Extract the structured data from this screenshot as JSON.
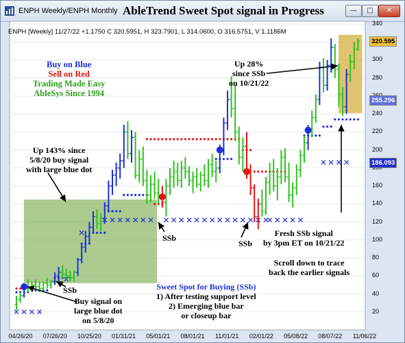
{
  "window": {
    "tab_text": "ENPH Weekly/ENPH Monthly",
    "title": "AbleTrend Sweet Spot signal in Progress",
    "minimize_label": "—",
    "maximize_label": "□",
    "close_label": "✕"
  },
  "info_line": "ENPH [Weekly] 11/27/22 +1.1750 C 320.5951, H 323.7901, L 314.0600, O 316.5751, V 1.1186M",
  "price_boxes": [
    {
      "value": "320.595",
      "bg": "#f0c040",
      "fg": "#000000"
    },
    {
      "value": "255.296",
      "bg": "#6070d8",
      "fg": "#ffffff"
    },
    {
      "value": "186.093",
      "bg": "#2030c8",
      "fg": "#ffffff"
    }
  ],
  "annotations": {
    "slogan": [
      "Buy on Blue",
      "Sell on Red",
      "Trading Made Easy",
      "AbleSys Since 1994"
    ],
    "up143": [
      "Up 143% since",
      "5/8/20 buy signal",
      "with large blue dot"
    ],
    "up28": [
      "Up 28%",
      "since SSb",
      "on 10/21/22"
    ],
    "ssb_a": "SSb",
    "ssb_b": "SSb",
    "ssb_c": "SSb",
    "buy_signal": [
      "Buy signal on",
      "large blue dot",
      "on 5/8/20"
    ],
    "sweet_title": "Sweet Spot for Buying (SSb)",
    "sweet_lines": [
      "1) After testing support level",
      "2) Emerging blue bar",
      "or closeup bar"
    ],
    "fresh": [
      "Fresh SSb signal",
      "by 3pm ET on 10/21/22"
    ],
    "scroll": [
      "Scroll down to trace",
      "back the earlier signals"
    ]
  },
  "colors": {
    "up_bar": "#1d2fd6",
    "neutral_bar": "#2fc21f",
    "down_bar": "#e01414",
    "support_dot": "#1d2fd6",
    "resist_dot": "#e01414",
    "x_marker": "#1d2fd6",
    "green_box": "#8fb96a",
    "gold_box": "#d8b44a"
  },
  "chart_data": {
    "type": "ohlc",
    "ylim": [
      0,
      340
    ],
    "y_ticks": [
      20,
      40,
      60,
      80,
      100,
      120,
      140,
      160,
      180,
      200,
      220,
      240,
      260,
      280,
      300,
      320,
      340
    ],
    "x_ticks": [
      "04/26/20",
      "07/26/20",
      "10/25/20",
      "01/31/21",
      "05/01/21",
      "08/01/21",
      "11/01/21",
      "02/01/22",
      "05/08/22",
      "08/07/22",
      "11/06/22"
    ],
    "bars": [
      {
        "i": 0,
        "o": 28,
        "h": 38,
        "l": 22,
        "c": 34,
        "color": "neutral"
      },
      {
        "i": 1,
        "o": 34,
        "h": 42,
        "l": 30,
        "c": 38,
        "color": "neutral"
      },
      {
        "i": 2,
        "o": 38,
        "h": 52,
        "l": 36,
        "c": 48,
        "color": "up"
      },
      {
        "i": 3,
        "o": 48,
        "h": 56,
        "l": 42,
        "c": 46,
        "color": "neutral"
      },
      {
        "i": 4,
        "o": 46,
        "h": 54,
        "l": 42,
        "c": 50,
        "color": "neutral"
      },
      {
        "i": 5,
        "o": 50,
        "h": 56,
        "l": 44,
        "c": 48,
        "color": "neutral"
      },
      {
        "i": 6,
        "o": 48,
        "h": 54,
        "l": 42,
        "c": 46,
        "color": "neutral"
      },
      {
        "i": 7,
        "o": 46,
        "h": 54,
        "l": 42,
        "c": 52,
        "color": "neutral"
      },
      {
        "i": 8,
        "o": 52,
        "h": 58,
        "l": 46,
        "c": 50,
        "color": "neutral"
      },
      {
        "i": 9,
        "o": 50,
        "h": 56,
        "l": 46,
        "c": 54,
        "color": "neutral"
      },
      {
        "i": 10,
        "o": 54,
        "h": 64,
        "l": 50,
        "c": 60,
        "color": "up"
      },
      {
        "i": 11,
        "o": 60,
        "h": 70,
        "l": 54,
        "c": 64,
        "color": "up"
      },
      {
        "i": 12,
        "o": 64,
        "h": 72,
        "l": 58,
        "c": 62,
        "color": "neutral"
      },
      {
        "i": 13,
        "o": 62,
        "h": 68,
        "l": 56,
        "c": 60,
        "color": "neutral"
      },
      {
        "i": 14,
        "o": 60,
        "h": 66,
        "l": 54,
        "c": 58,
        "color": "neutral"
      },
      {
        "i": 15,
        "o": 58,
        "h": 66,
        "l": 54,
        "c": 64,
        "color": "neutral"
      },
      {
        "i": 16,
        "o": 64,
        "h": 80,
        "l": 60,
        "c": 78,
        "color": "up"
      },
      {
        "i": 17,
        "o": 78,
        "h": 96,
        "l": 74,
        "c": 92,
        "color": "up"
      },
      {
        "i": 18,
        "o": 92,
        "h": 110,
        "l": 86,
        "c": 104,
        "color": "up"
      },
      {
        "i": 19,
        "o": 104,
        "h": 120,
        "l": 96,
        "c": 114,
        "color": "up"
      },
      {
        "i": 20,
        "o": 114,
        "h": 132,
        "l": 108,
        "c": 126,
        "color": "up"
      },
      {
        "i": 21,
        "o": 126,
        "h": 134,
        "l": 112,
        "c": 118,
        "color": "neutral"
      },
      {
        "i": 22,
        "o": 118,
        "h": 130,
        "l": 110,
        "c": 124,
        "color": "neutral"
      },
      {
        "i": 23,
        "o": 124,
        "h": 142,
        "l": 118,
        "c": 138,
        "color": "up"
      },
      {
        "i": 24,
        "o": 138,
        "h": 166,
        "l": 132,
        "c": 160,
        "color": "up"
      },
      {
        "i": 25,
        "o": 160,
        "h": 178,
        "l": 150,
        "c": 172,
        "color": "up"
      },
      {
        "i": 26,
        "o": 172,
        "h": 186,
        "l": 160,
        "c": 180,
        "color": "up"
      },
      {
        "i": 27,
        "o": 180,
        "h": 196,
        "l": 168,
        "c": 188,
        "color": "up"
      },
      {
        "i": 28,
        "o": 188,
        "h": 228,
        "l": 180,
        "c": 220,
        "color": "up"
      },
      {
        "i": 29,
        "o": 220,
        "h": 232,
        "l": 190,
        "c": 196,
        "color": "neutral"
      },
      {
        "i": 30,
        "o": 196,
        "h": 222,
        "l": 186,
        "c": 214,
        "color": "up"
      },
      {
        "i": 31,
        "o": 214,
        "h": 220,
        "l": 168,
        "c": 172,
        "color": "neutral"
      },
      {
        "i": 32,
        "o": 172,
        "h": 200,
        "l": 164,
        "c": 190,
        "color": "neutral"
      },
      {
        "i": 33,
        "o": 190,
        "h": 204,
        "l": 160,
        "c": 166,
        "color": "neutral"
      },
      {
        "i": 34,
        "o": 166,
        "h": 178,
        "l": 140,
        "c": 150,
        "color": "neutral"
      },
      {
        "i": 35,
        "o": 150,
        "h": 172,
        "l": 142,
        "c": 162,
        "color": "neutral"
      },
      {
        "i": 36,
        "o": 162,
        "h": 176,
        "l": 146,
        "c": 152,
        "color": "neutral"
      },
      {
        "i": 37,
        "o": 152,
        "h": 168,
        "l": 140,
        "c": 148,
        "color": "neutral"
      },
      {
        "i": 38,
        "o": 148,
        "h": 160,
        "l": 136,
        "c": 142,
        "color": "down"
      },
      {
        "i": 39,
        "o": 142,
        "h": 168,
        "l": 126,
        "c": 160,
        "color": "neutral"
      },
      {
        "i": 40,
        "o": 160,
        "h": 180,
        "l": 150,
        "c": 170,
        "color": "neutral"
      },
      {
        "i": 41,
        "o": 170,
        "h": 188,
        "l": 158,
        "c": 176,
        "color": "neutral"
      },
      {
        "i": 42,
        "o": 176,
        "h": 186,
        "l": 160,
        "c": 166,
        "color": "neutral"
      },
      {
        "i": 43,
        "o": 166,
        "h": 188,
        "l": 158,
        "c": 180,
        "color": "neutral"
      },
      {
        "i": 44,
        "o": 180,
        "h": 192,
        "l": 168,
        "c": 176,
        "color": "neutral"
      },
      {
        "i": 45,
        "o": 176,
        "h": 182,
        "l": 160,
        "c": 166,
        "color": "neutral"
      },
      {
        "i": 46,
        "o": 166,
        "h": 176,
        "l": 152,
        "c": 170,
        "color": "neutral"
      },
      {
        "i": 47,
        "o": 170,
        "h": 180,
        "l": 158,
        "c": 162,
        "color": "neutral"
      },
      {
        "i": 48,
        "o": 162,
        "h": 176,
        "l": 154,
        "c": 172,
        "color": "neutral"
      },
      {
        "i": 49,
        "o": 172,
        "h": 184,
        "l": 160,
        "c": 166,
        "color": "neutral"
      },
      {
        "i": 50,
        "o": 166,
        "h": 190,
        "l": 158,
        "c": 184,
        "color": "neutral"
      },
      {
        "i": 51,
        "o": 184,
        "h": 196,
        "l": 170,
        "c": 176,
        "color": "neutral"
      },
      {
        "i": 52,
        "o": 176,
        "h": 188,
        "l": 164,
        "c": 180,
        "color": "neutral"
      },
      {
        "i": 53,
        "o": 180,
        "h": 206,
        "l": 174,
        "c": 200,
        "color": "up"
      },
      {
        "i": 54,
        "o": 200,
        "h": 236,
        "l": 194,
        "c": 230,
        "color": "up"
      },
      {
        "i": 55,
        "o": 230,
        "h": 266,
        "l": 222,
        "c": 256,
        "color": "up"
      },
      {
        "i": 56,
        "o": 256,
        "h": 282,
        "l": 236,
        "c": 246,
        "color": "neutral"
      },
      {
        "i": 57,
        "o": 246,
        "h": 272,
        "l": 210,
        "c": 220,
        "color": "neutral"
      },
      {
        "i": 58,
        "o": 220,
        "h": 226,
        "l": 184,
        "c": 192,
        "color": "neutral"
      },
      {
        "i": 59,
        "o": 192,
        "h": 214,
        "l": 176,
        "c": 204,
        "color": "neutral"
      },
      {
        "i": 60,
        "o": 204,
        "h": 220,
        "l": 168,
        "c": 176,
        "color": "down"
      },
      {
        "i": 61,
        "o": 176,
        "h": 184,
        "l": 150,
        "c": 158,
        "color": "down"
      },
      {
        "i": 62,
        "o": 158,
        "h": 162,
        "l": 120,
        "c": 126,
        "color": "down"
      },
      {
        "i": 63,
        "o": 126,
        "h": 146,
        "l": 112,
        "c": 140,
        "color": "down"
      },
      {
        "i": 64,
        "o": 140,
        "h": 156,
        "l": 126,
        "c": 132,
        "color": "neutral"
      },
      {
        "i": 65,
        "o": 132,
        "h": 170,
        "l": 128,
        "c": 164,
        "color": "neutral"
      },
      {
        "i": 66,
        "o": 164,
        "h": 186,
        "l": 150,
        "c": 176,
        "color": "neutral"
      },
      {
        "i": 67,
        "o": 176,
        "h": 190,
        "l": 154,
        "c": 160,
        "color": "neutral"
      },
      {
        "i": 68,
        "o": 160,
        "h": 180,
        "l": 144,
        "c": 170,
        "color": "neutral"
      },
      {
        "i": 69,
        "o": 170,
        "h": 200,
        "l": 162,
        "c": 192,
        "color": "neutral"
      },
      {
        "i": 70,
        "o": 192,
        "h": 202,
        "l": 164,
        "c": 170,
        "color": "neutral"
      },
      {
        "i": 71,
        "o": 170,
        "h": 186,
        "l": 142,
        "c": 150,
        "color": "neutral"
      },
      {
        "i": 72,
        "o": 150,
        "h": 164,
        "l": 136,
        "c": 158,
        "color": "neutral"
      },
      {
        "i": 73,
        "o": 158,
        "h": 184,
        "l": 150,
        "c": 178,
        "color": "neutral"
      },
      {
        "i": 74,
        "o": 178,
        "h": 200,
        "l": 170,
        "c": 194,
        "color": "neutral"
      },
      {
        "i": 75,
        "o": 194,
        "h": 216,
        "l": 186,
        "c": 208,
        "color": "neutral"
      },
      {
        "i": 76,
        "o": 208,
        "h": 228,
        "l": 200,
        "c": 222,
        "color": "up"
      },
      {
        "i": 77,
        "o": 222,
        "h": 244,
        "l": 214,
        "c": 236,
        "color": "neutral"
      },
      {
        "i": 78,
        "o": 236,
        "h": 262,
        "l": 230,
        "c": 256,
        "color": "neutral"
      },
      {
        "i": 79,
        "o": 256,
        "h": 298,
        "l": 250,
        "c": 292,
        "color": "up"
      },
      {
        "i": 80,
        "o": 292,
        "h": 302,
        "l": 264,
        "c": 272,
        "color": "neutral"
      },
      {
        "i": 81,
        "o": 272,
        "h": 300,
        "l": 266,
        "c": 294,
        "color": "up"
      },
      {
        "i": 82,
        "o": 294,
        "h": 324,
        "l": 286,
        "c": 314,
        "color": "up"
      },
      {
        "i": 83,
        "o": 314,
        "h": 318,
        "l": 280,
        "c": 290,
        "color": "neutral"
      },
      {
        "i": 84,
        "o": 290,
        "h": 296,
        "l": 248,
        "c": 262,
        "color": "neutral"
      },
      {
        "i": 85,
        "o": 262,
        "h": 270,
        "l": 238,
        "c": 248,
        "color": "neutral"
      },
      {
        "i": 86,
        "o": 248,
        "h": 290,
        "l": 240,
        "c": 284,
        "color": "up"
      },
      {
        "i": 87,
        "o": 284,
        "h": 306,
        "l": 276,
        "c": 298,
        "color": "neutral"
      },
      {
        "i": 88,
        "o": 298,
        "h": 320,
        "l": 290,
        "c": 312,
        "color": "neutral"
      },
      {
        "i": 89,
        "o": 312,
        "h": 324,
        "l": 310,
        "c": 321,
        "color": "neutral"
      }
    ],
    "support_dots": [
      {
        "from": 0,
        "to": 3,
        "y": 42
      },
      {
        "from": 5,
        "to": 8,
        "y": 44
      },
      {
        "from": 10,
        "to": 14,
        "y": 58
      },
      {
        "from": 17,
        "to": 19,
        "y": 96
      },
      {
        "from": 20,
        "to": 23,
        "y": 108
      },
      {
        "from": 24,
        "to": 27,
        "y": 132
      },
      {
        "from": 28,
        "to": 34,
        "y": 150
      },
      {
        "from": 52,
        "to": 56,
        "y": 190
      },
      {
        "from": 75,
        "to": 79,
        "y": 216
      },
      {
        "from": 80,
        "to": 82,
        "y": 226
      },
      {
        "from": 83,
        "to": 89,
        "y": 234
      }
    ],
    "resist_dots": [
      {
        "from": 0,
        "to": 1,
        "y": 46
      },
      {
        "from": 36,
        "to": 38,
        "y": 140
      },
      {
        "from": 34,
        "to": 58,
        "y": 212
      },
      {
        "from": 59,
        "to": 61,
        "y": 200
      },
      {
        "from": 62,
        "to": 70,
        "y": 176
      }
    ],
    "big_dots": [
      {
        "i": 2,
        "y": 48,
        "color": "up"
      },
      {
        "i": 38,
        "y": 148,
        "color": "down"
      },
      {
        "i": 53,
        "y": 200,
        "color": "up"
      },
      {
        "i": 60,
        "y": 176,
        "color": "down"
      },
      {
        "i": 76,
        "y": 222,
        "color": "up"
      }
    ],
    "x_markers": [
      {
        "from": 0,
        "to": 6,
        "y": 20
      },
      {
        "from": 13,
        "to": 14,
        "y": 56
      },
      {
        "from": 17,
        "to": 18,
        "y": 108
      },
      {
        "from": 23,
        "to": 36,
        "y": 122
      },
      {
        "from": 39,
        "to": 65,
        "y": 122
      },
      {
        "from": 66,
        "to": 75,
        "y": 122
      },
      {
        "from": 80,
        "to": 87,
        "y": 186
      }
    ]
  }
}
